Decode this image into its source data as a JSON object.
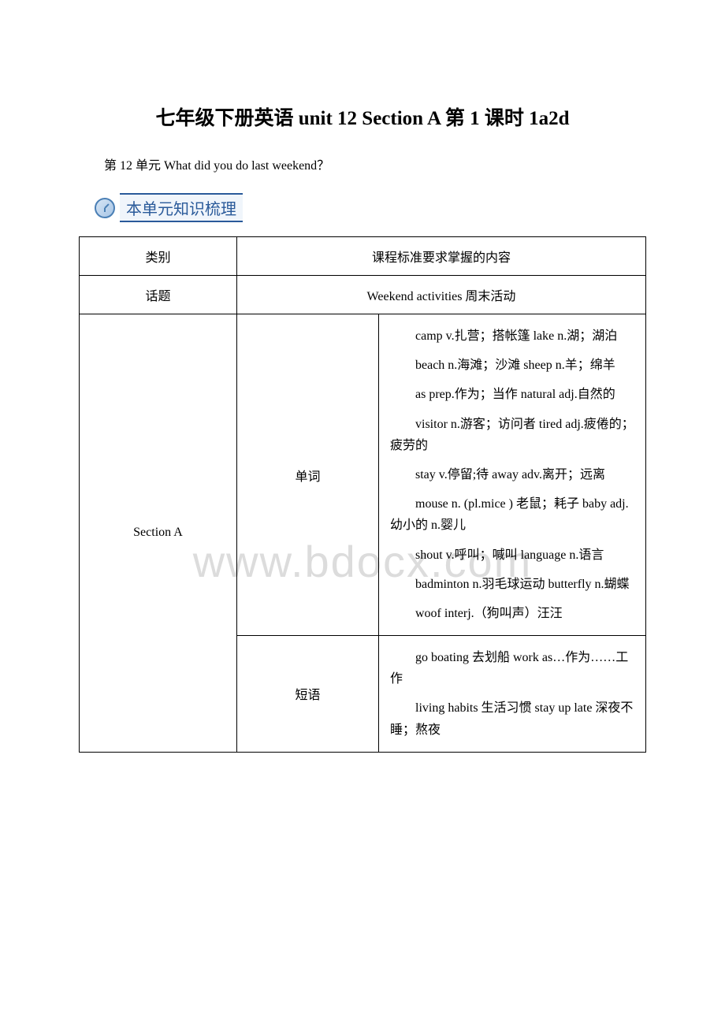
{
  "title": "七年级下册英语 unit 12 Section A 第 1 课时 1a2d",
  "subtitle": "第 12 单元 What did you do last weekend？",
  "sectionHeader": "本单元知识梳理",
  "watermark": "www.bdocx.com",
  "table": {
    "headerRow": {
      "category": "类别",
      "standard": "课程标准要求掌握的内容"
    },
    "topicRow": {
      "label": "话题",
      "content": "Weekend activities 周末活动"
    },
    "sectionLabel": "Section A",
    "vocabLabel": "单词",
    "phrasesLabel": "短语",
    "vocabBlocks": [
      "camp v.扎营；搭帐篷 lake n.湖；湖泊",
      "beach n.海滩；沙滩 sheep n.羊；绵羊",
      "as prep.作为；当作 natural adj.自然的",
      "visitor n.游客；访问者 tired adj.疲倦的；疲劳的",
      "stay v.停留;待 away adv.离开；远离",
      "mouse n. (pl.mice ) 老鼠；耗子 baby adj.幼小的 n.婴儿",
      "shout v.呼叫；喊叫 language n.语言",
      "badminton n.羽毛球运动 butterfly n.蝴蝶",
      "woof interj.（狗叫声）汪汪"
    ],
    "phrasesBlocks": [
      "go boating 去划船 work as…作为……工作",
      "living habits 生活习惯  stay up late 深夜不睡；熬夜"
    ]
  },
  "styling": {
    "pageWidth": 920,
    "pageHeight": 1302,
    "backgroundColor": "#ffffff",
    "borderColor": "#000000",
    "textColor": "#000000",
    "headerAccentColor": "#2a5a9a",
    "watermarkColor": "#dcdcdc",
    "titleFontSize": 25,
    "bodyFontSize": 16,
    "headerFontSize": 20,
    "watermarkFontSize": 56
  }
}
